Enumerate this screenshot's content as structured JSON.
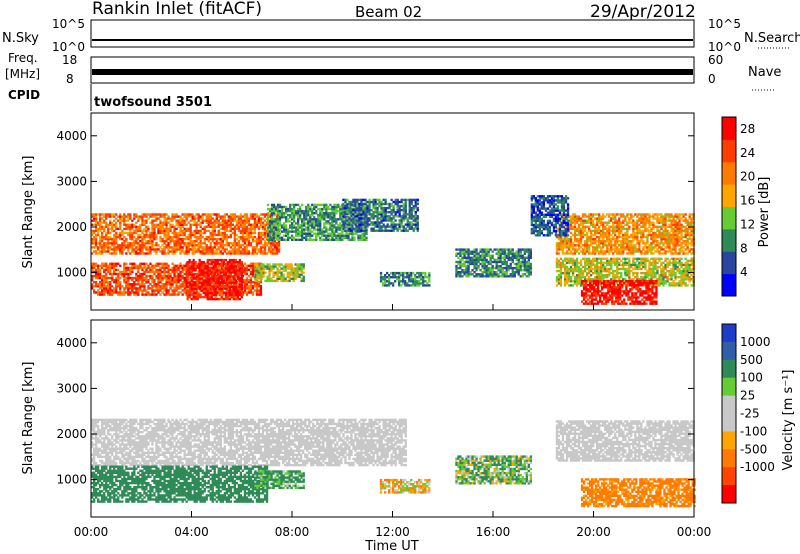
{
  "header": {
    "station": "Rankin Inlet (fitACF)",
    "beam": "Beam 02",
    "date": "29/Apr/2012"
  },
  "aux_panels": {
    "nsky": {
      "label": "N.Sky",
      "ticks_left": [
        "10^5",
        "10^0"
      ],
      "ticks_right": [
        "10^5",
        "10^0"
      ],
      "right_label": "N.Search"
    },
    "freq": {
      "label_top": "Freq.",
      "label_bottom": "[MHz]",
      "ticks_left": [
        "18",
        "8"
      ],
      "ticks_right": [
        "60",
        "0"
      ],
      "right_label": "Nave"
    },
    "cpid": {
      "label": "CPID",
      "value": "twofsound 3501"
    }
  },
  "colors": {
    "power_scale": [
      "#0000ff",
      "#2846a0",
      "#2e8b57",
      "#66cc33",
      "#ffa500",
      "#ff7a00",
      "#ff3d00",
      "#ff0000"
    ],
    "velocity_scale": [
      "#1f3cc8",
      "#2f5fa8",
      "#2e8b57",
      "#66cc33",
      "#c8c8c8",
      "#c8c8c8",
      "#ffa500",
      "#ff7a00",
      "#ff4500",
      "#ff0000"
    ]
  },
  "chart_data": [
    {
      "type": "heatmap",
      "panel": "power",
      "ylabel": "Slant Range [km]",
      "xlabel": "",
      "x_ticks": [
        "00:00",
        "04:00",
        "08:00",
        "12:00",
        "16:00",
        "20:00",
        "00:00"
      ],
      "y_ticks": [
        "1000",
        "2000",
        "3000",
        "4000"
      ],
      "ylim": [
        180,
        4500
      ],
      "xlim_hours": [
        0,
        24
      ],
      "colorbar": {
        "label": "Power [dB]",
        "ticks": [
          "28",
          "24",
          "20",
          "16",
          "12",
          "8",
          "4"
        ],
        "range": [
          0,
          30
        ]
      },
      "regions": [
        {
          "t0": 0.0,
          "t1": 7.5,
          "r0": 1400,
          "r1": 2300,
          "v": 22
        },
        {
          "t0": 0.0,
          "t1": 6.8,
          "r0": 500,
          "r1": 1200,
          "v": 24
        },
        {
          "t0": 3.8,
          "t1": 6.0,
          "r0": 400,
          "r1": 1300,
          "v": 27
        },
        {
          "t0": 6.5,
          "t1": 8.5,
          "r0": 800,
          "r1": 1200,
          "v": 14
        },
        {
          "t0": 7.0,
          "t1": 11.0,
          "r0": 1700,
          "r1": 2500,
          "v": 10
        },
        {
          "t0": 10.0,
          "t1": 13.0,
          "r0": 1900,
          "r1": 2600,
          "v": 8
        },
        {
          "t0": 11.5,
          "t1": 13.5,
          "r0": 700,
          "r1": 1000,
          "v": 9
        },
        {
          "t0": 14.5,
          "t1": 17.5,
          "r0": 900,
          "r1": 1500,
          "v": 9
        },
        {
          "t0": 18.5,
          "t1": 24.0,
          "r0": 1400,
          "r1": 2300,
          "v": 19
        },
        {
          "t0": 18.5,
          "t1": 24.0,
          "r0": 700,
          "r1": 1300,
          "v": 15
        },
        {
          "t0": 19.5,
          "t1": 22.5,
          "r0": 300,
          "r1": 800,
          "v": 28
        },
        {
          "t0": 17.5,
          "t1": 19.0,
          "r0": 1800,
          "r1": 2700,
          "v": 6
        }
      ]
    },
    {
      "type": "heatmap",
      "panel": "velocity",
      "ylabel": "Slant Range [km]",
      "xlabel": "Time UT",
      "x_ticks": [
        "00:00",
        "04:00",
        "08:00",
        "12:00",
        "16:00",
        "20:00",
        "00:00"
      ],
      "y_ticks": [
        "1000",
        "2000",
        "3000",
        "4000"
      ],
      "ylim": [
        180,
        4500
      ],
      "xlim_hours": [
        0,
        24
      ],
      "colorbar": {
        "label": "Velocity [m s⁻¹]",
        "ticks": [
          "1000",
          "500",
          "100",
          "25",
          "-25",
          "-100",
          "-500",
          "-1000"
        ]
      },
      "regions": [
        {
          "t0": 0.0,
          "t1": 12.5,
          "r0": 1300,
          "r1": 2300,
          "v": 0
        },
        {
          "t0": 0.0,
          "t1": 7.0,
          "r0": 500,
          "r1": 1300,
          "v": 300
        },
        {
          "t0": 6.5,
          "t1": 8.5,
          "r0": 800,
          "r1": 1200,
          "v": 150
        },
        {
          "t0": 18.5,
          "t1": 24.0,
          "r0": 1400,
          "r1": 2300,
          "v": 0
        },
        {
          "t0": 19.5,
          "t1": 24.0,
          "r0": 400,
          "r1": 1000,
          "v": -200
        },
        {
          "t0": 14.5,
          "t1": 17.5,
          "r0": 900,
          "r1": 1500,
          "v": 80
        },
        {
          "t0": 11.5,
          "t1": 13.5,
          "r0": 700,
          "r1": 1000,
          "v": -60
        }
      ]
    }
  ]
}
